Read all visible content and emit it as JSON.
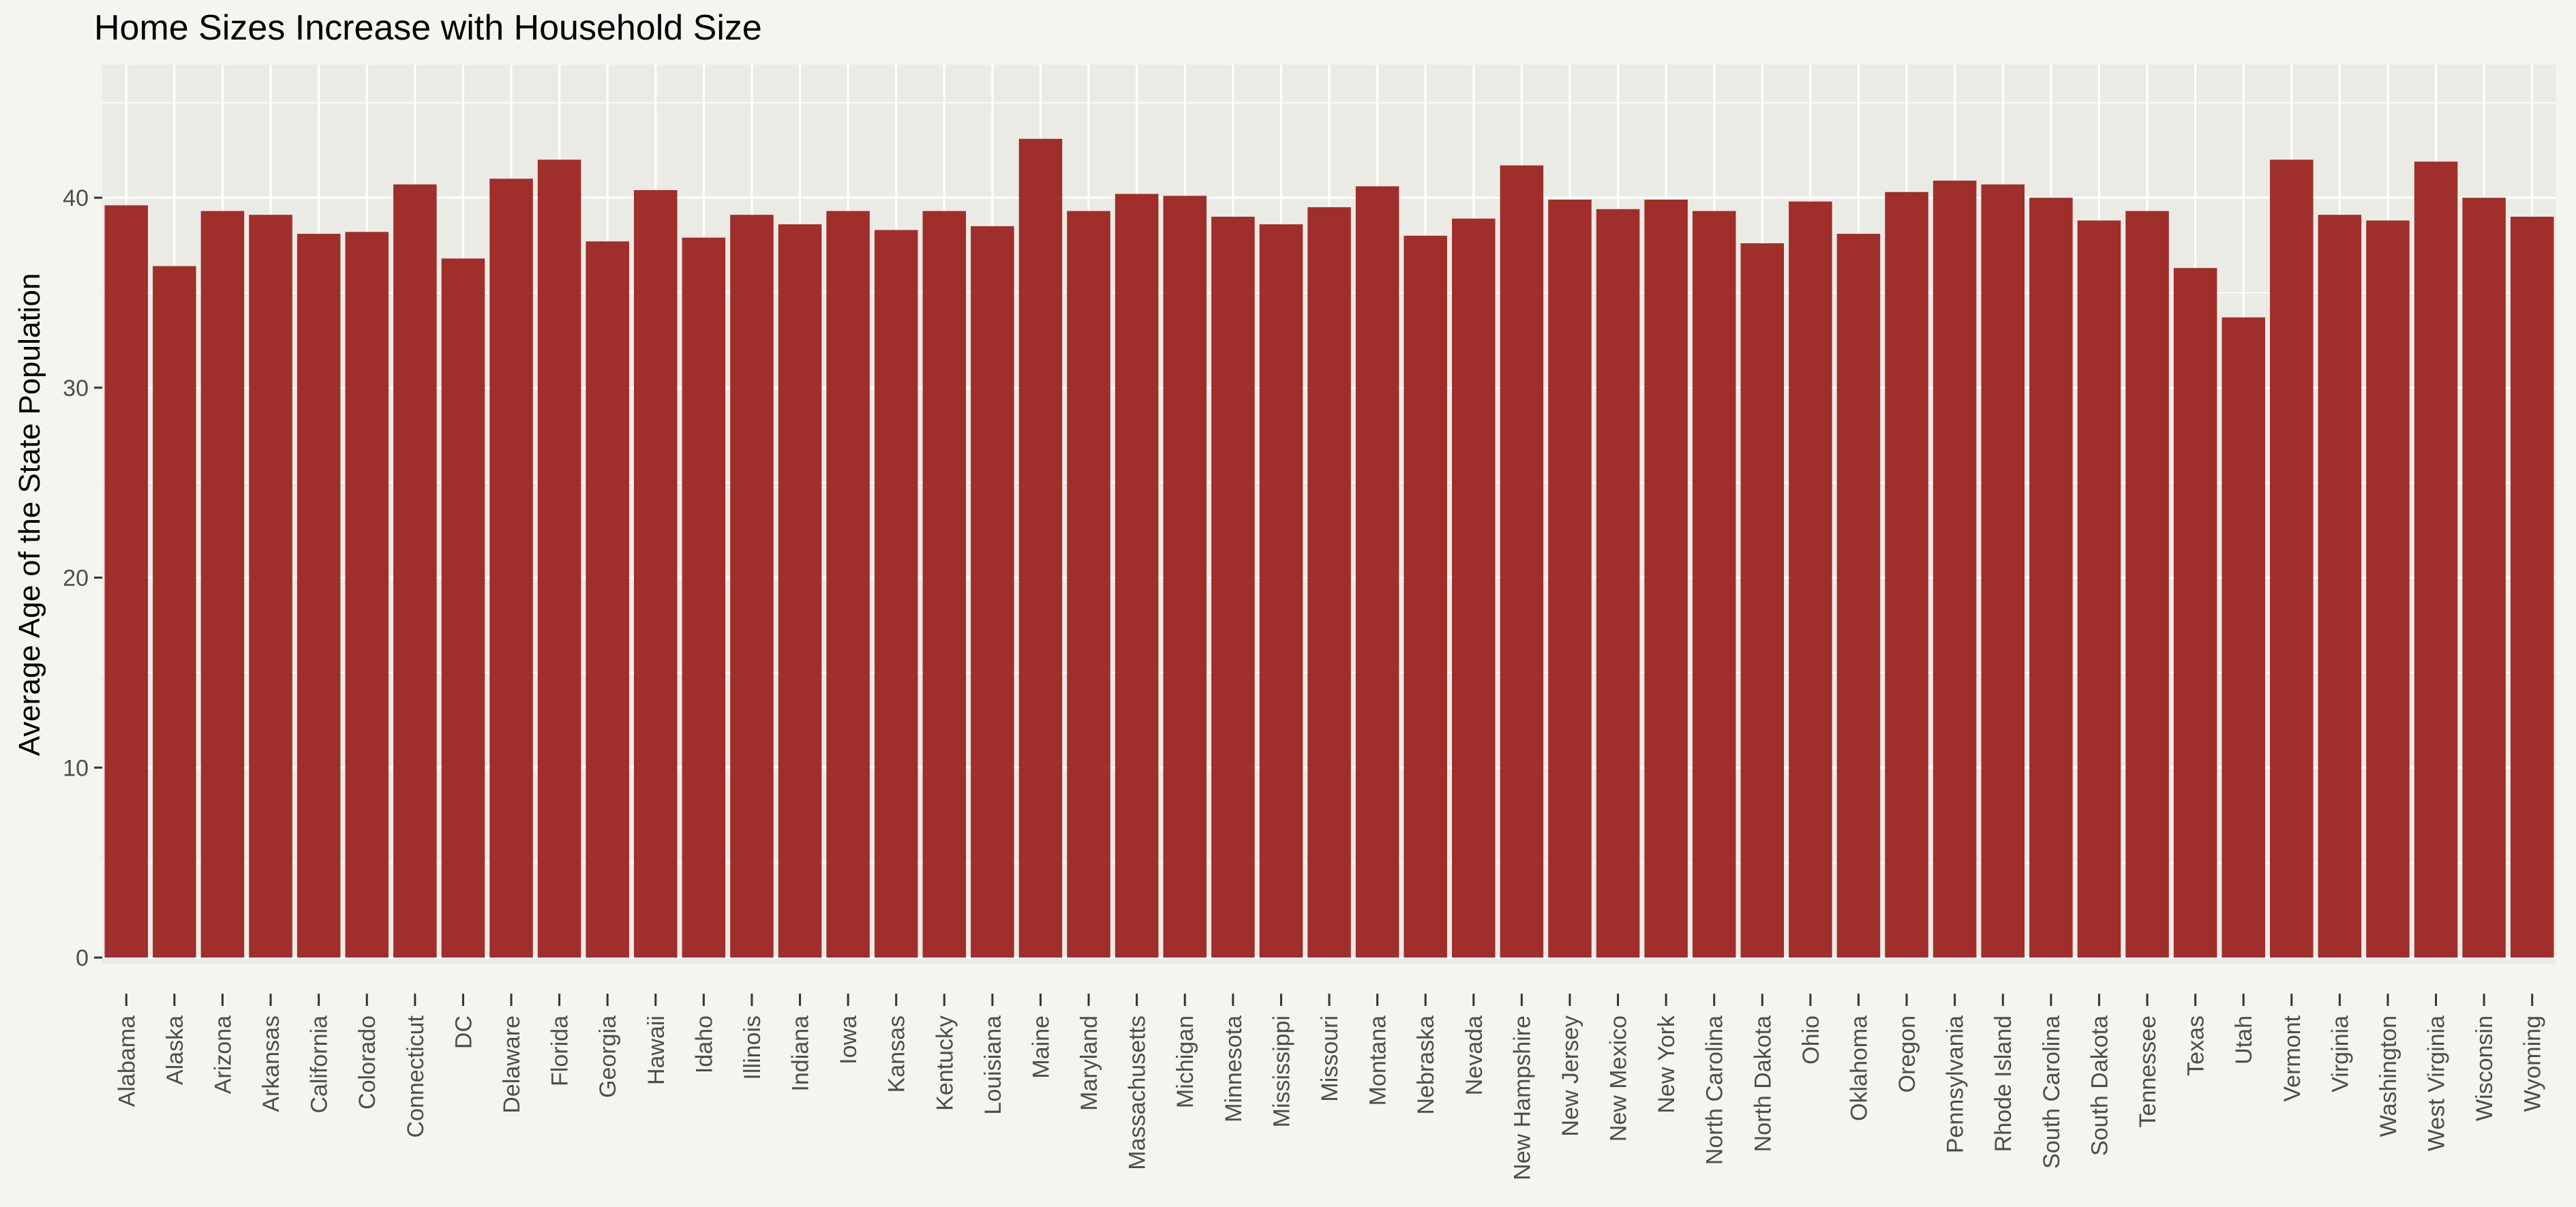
{
  "chart_data": {
    "type": "bar",
    "title": "Home Sizes Increase with Household Size",
    "xlabel": "",
    "ylabel": "Average Age of the State Population",
    "ylim": [
      0,
      47
    ],
    "y_ticks": [
      0,
      10,
      20,
      30,
      40
    ],
    "grid": true,
    "bar_color": "#a02e2a",
    "background_color": "#f5f5f0",
    "grid_color": "#ffffff",
    "categories": [
      "Alabama",
      "Alaska",
      "Arizona",
      "Arkansas",
      "California",
      "Colorado",
      "Connecticut",
      "DC",
      "Delaware",
      "Florida",
      "Georgia",
      "Hawaii",
      "Idaho",
      "Illinois",
      "Indiana",
      "Iowa",
      "Kansas",
      "Kentucky",
      "Louisiana",
      "Maine",
      "Maryland",
      "Massachusetts",
      "Michigan",
      "Minnesota",
      "Mississippi",
      "Missouri",
      "Montana",
      "Nebraska",
      "Nevada",
      "New Hampshire",
      "New Jersey",
      "New Mexico",
      "New York",
      "North Carolina",
      "North Dakota",
      "Ohio",
      "Oklahoma",
      "Oregon",
      "Pennsylvania",
      "Rhode Island",
      "South Carolina",
      "South Dakota",
      "Tennessee",
      "Texas",
      "Utah",
      "Vermont",
      "Virginia",
      "Washington",
      "West Virginia",
      "Wisconsin",
      "Wyoming"
    ],
    "values": [
      39.6,
      36.4,
      39.3,
      39.1,
      38.1,
      38.2,
      40.7,
      36.8,
      41.0,
      42.0,
      37.7,
      40.4,
      37.9,
      39.1,
      38.6,
      39.3,
      38.3,
      39.3,
      38.5,
      43.1,
      39.3,
      40.2,
      40.1,
      39.0,
      38.6,
      39.5,
      40.6,
      38.0,
      38.9,
      41.7,
      39.9,
      39.4,
      39.9,
      39.3,
      37.6,
      39.8,
      38.1,
      40.3,
      40.9,
      40.7,
      40.0,
      38.8,
      39.3,
      36.3,
      33.7,
      42.0,
      39.1,
      38.8,
      41.9,
      40.0,
      39.0
    ]
  }
}
